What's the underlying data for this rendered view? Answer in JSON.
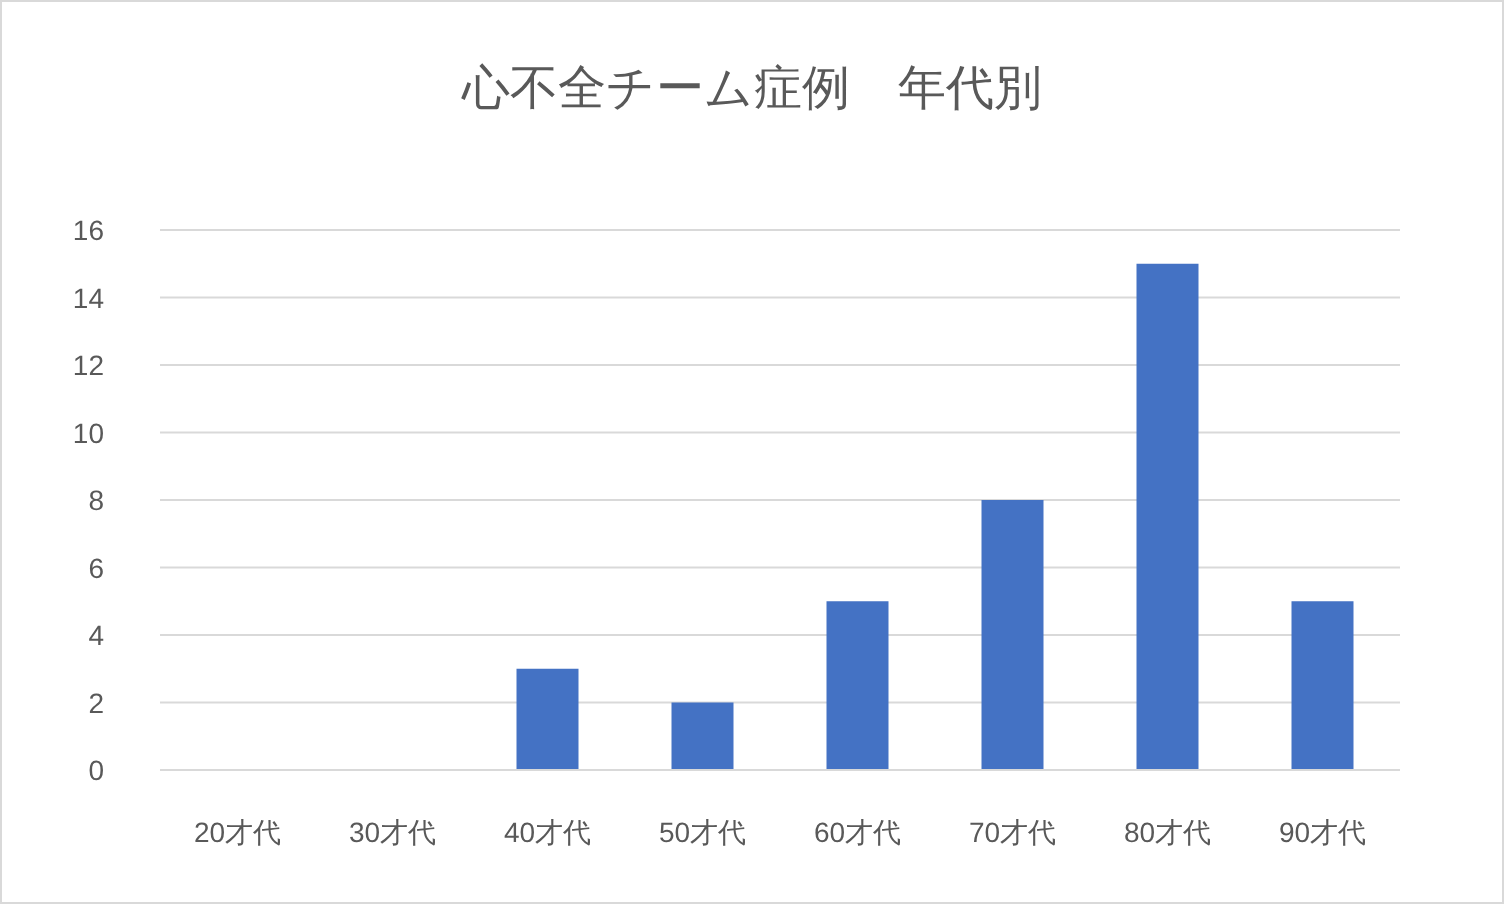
{
  "chart_data": {
    "type": "bar",
    "title": "心不全チーム症例　年代別",
    "categories": [
      "20才代",
      "30才代",
      "40才代",
      "50才代",
      "60才代",
      "70才代",
      "80才代",
      "90才代"
    ],
    "values": [
      0,
      0,
      3,
      2,
      5,
      8,
      15,
      5
    ],
    "color": "#4472c4",
    "ylim": [
      0,
      16
    ],
    "yticks": [
      0,
      2,
      4,
      6,
      8,
      10,
      12,
      14,
      16
    ],
    "grid": "y"
  }
}
